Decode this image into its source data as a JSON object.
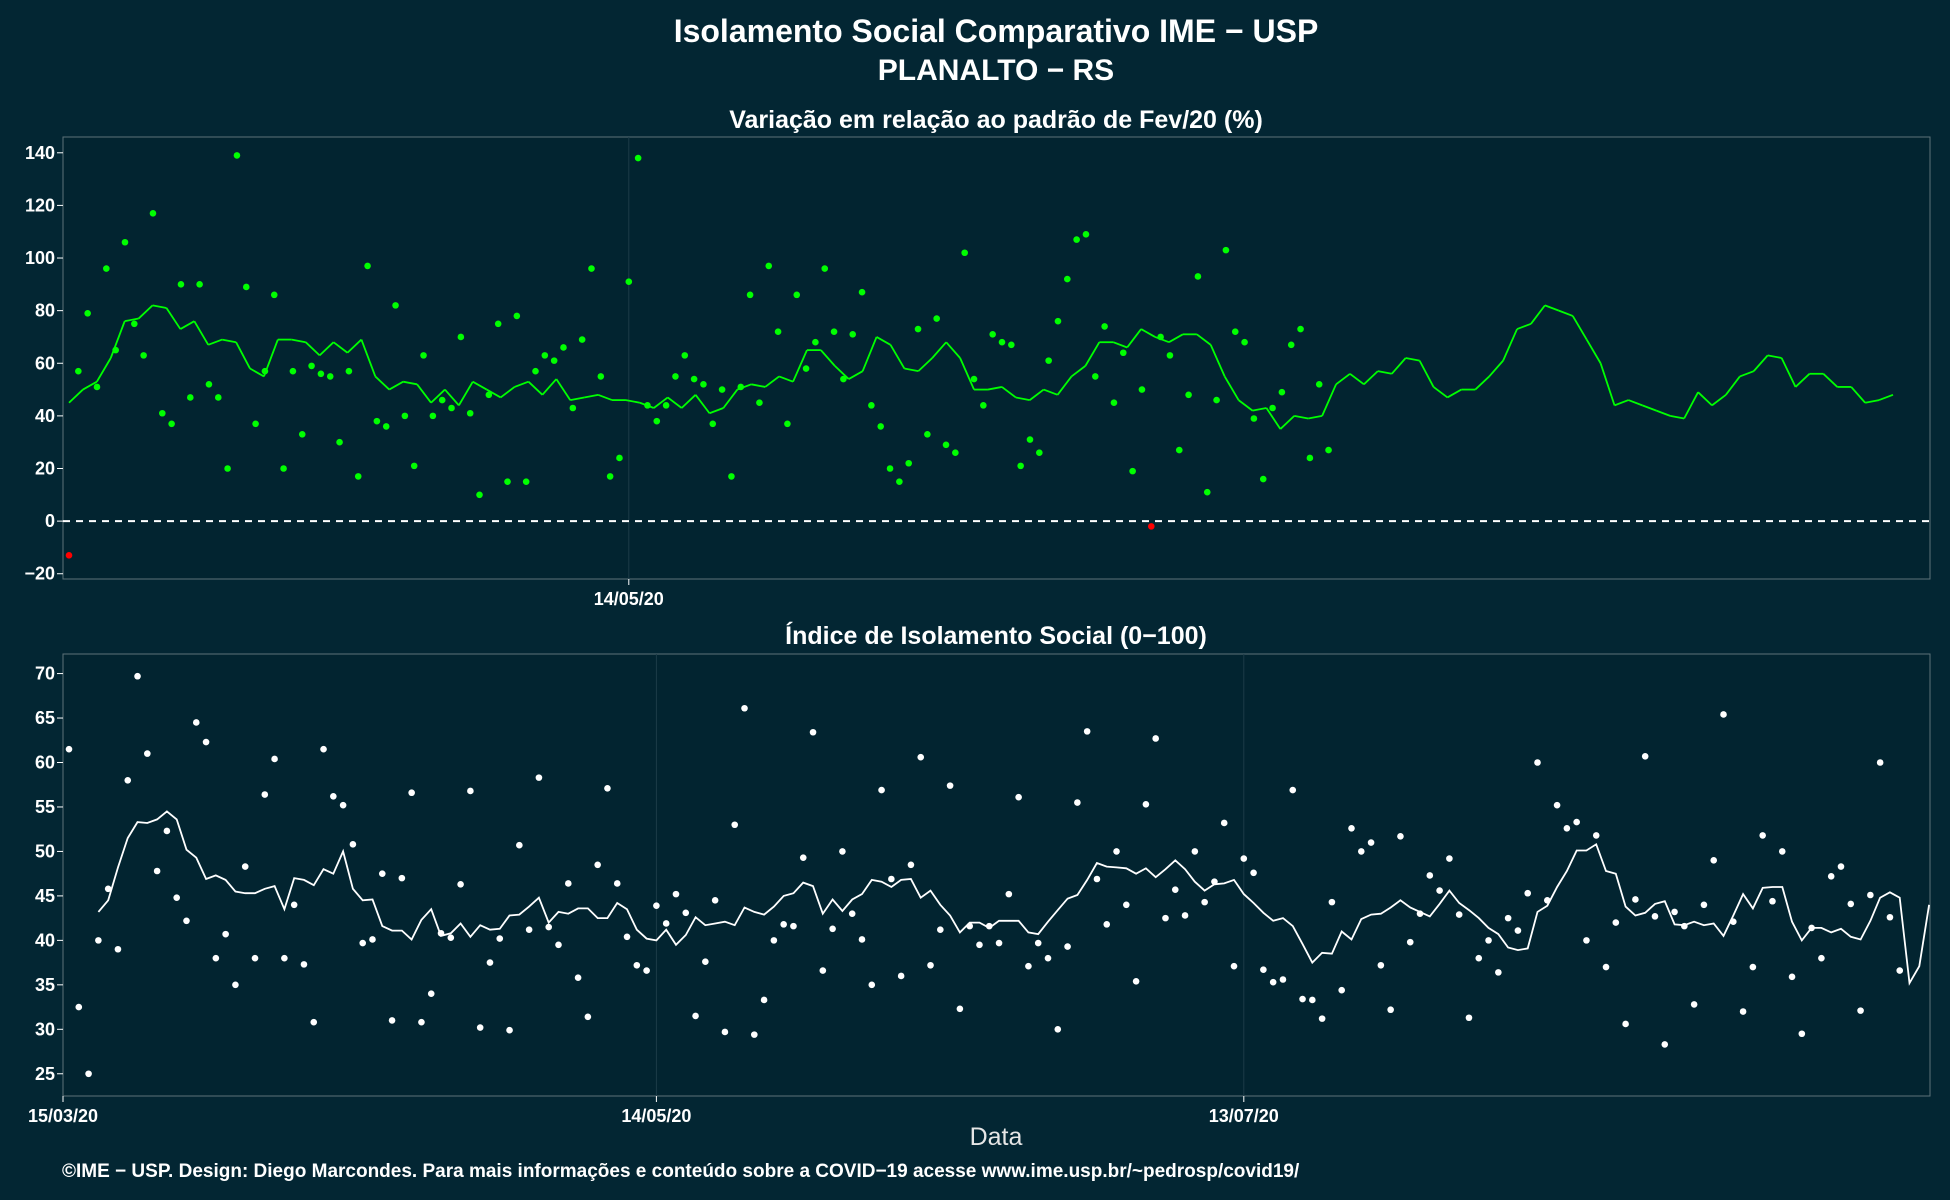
{
  "title_line1": "Isolamento Social Comparativo IME − USP",
  "title_line2": "PLANALTO − RS",
  "footer": "©IME − USP. Design: Diego Marcondes. Para mais informações e conteúdo sobre a COVID−19 acesse www.ime.usp.br/~pedrosp/covid19/",
  "colors": {
    "background": "#032633",
    "above_baseline": "#00ff00",
    "below_baseline": "#ff0000",
    "moving_average_light": "#ffffff",
    "index_points": "#ffffff"
  },
  "chart_data": [
    {
      "type": "scatter",
      "title": "Variação em relação ao padrão de Fev/20 (%)",
      "xlabel": "",
      "ylabel": "",
      "x_start": "15/03/20",
      "ylim": [
        -22,
        146
      ],
      "y_ticks": [
        "−20",
        "0",
        "20",
        "40",
        "60",
        "80",
        "100",
        "120",
        "140"
      ],
      "x_tick_labels": [
        "14/05/20"
      ],
      "x_tick_days": [
        60
      ],
      "reference_line": 0,
      "series": [
        {
          "kind": "points",
          "values": [
            -13,
            57,
            79,
            51,
            96,
            65,
            106,
            75,
            63,
            117,
            41,
            37,
            90,
            47,
            90,
            52,
            47,
            20,
            139,
            89,
            37,
            57,
            86,
            20,
            57,
            33,
            59,
            56,
            55,
            30,
            57,
            17,
            97,
            38,
            36,
            82,
            40,
            21,
            63,
            40,
            46,
            43,
            70,
            41,
            10,
            48,
            75,
            15,
            78,
            15,
            57,
            63,
            61,
            66,
            43,
            69,
            96,
            55,
            17,
            24,
            91,
            138,
            44,
            38,
            44,
            55,
            63,
            54,
            52,
            37,
            50,
            17,
            51,
            86,
            45,
            97,
            72,
            37,
            86,
            58,
            68,
            96,
            72,
            54,
            71,
            87,
            44,
            36,
            20,
            15,
            22,
            73,
            33,
            77,
            29,
            26,
            102,
            54,
            44,
            71,
            68,
            67,
            21,
            31,
            26,
            61,
            76,
            92,
            107,
            109,
            55,
            74,
            45,
            64,
            19,
            50,
            -2,
            70,
            63,
            27,
            48,
            93,
            11,
            46,
            103,
            72,
            68,
            39,
            16,
            43,
            49,
            67,
            73,
            24,
            52,
            27
          ]
        },
        {
          "kind": "moving_average",
          "values": [
            45,
            50,
            53,
            62,
            76,
            77,
            82,
            81,
            73,
            76,
            67,
            69,
            68,
            58,
            55,
            69,
            69,
            68,
            63,
            68,
            64,
            69,
            55,
            50,
            53,
            52,
            45,
            50,
            44,
            53,
            50,
            47,
            51,
            53,
            48,
            54,
            46,
            47,
            48,
            46,
            46,
            45,
            43,
            47,
            43,
            48,
            41,
            43,
            50,
            52,
            51,
            55,
            53,
            65,
            65,
            59,
            54,
            57,
            70,
            67,
            58,
            57,
            62,
            68,
            62,
            50,
            50,
            51,
            47,
            46,
            50,
            48,
            55,
            59,
            68,
            68,
            66,
            73,
            70,
            68,
            71,
            71,
            67,
            55,
            46,
            42,
            43,
            35,
            40,
            39,
            40,
            52,
            56,
            52,
            57,
            56,
            62,
            61,
            51,
            47,
            50,
            50,
            55,
            61,
            73,
            75,
            82,
            80,
            78,
            69,
            60,
            44,
            46,
            44,
            42,
            40,
            39,
            49,
            44,
            48,
            55,
            57,
            63,
            62,
            51,
            56,
            56,
            51,
            51,
            45,
            46,
            48
          ]
        }
      ]
    },
    {
      "type": "scatter",
      "title": "Índice de Isolamento Social (0−100)",
      "xlabel": "Data",
      "ylabel": "",
      "x_start": "15/03/20",
      "ylim": [
        22.5,
        72.2
      ],
      "y_ticks": [
        "25",
        "30",
        "35",
        "40",
        "45",
        "50",
        "55",
        "60",
        "65",
        "70"
      ],
      "x_tick_labels": [
        "15/03/20",
        "14/05/20",
        "13/07/20"
      ],
      "x_tick_days": [
        0,
        60,
        120
      ],
      "series": [
        {
          "kind": "points",
          "values": [
            61.5,
            32.5,
            25,
            40,
            45.8,
            39,
            58,
            69.7,
            61,
            47.8,
            52.3,
            44.8,
            42.2,
            64.5,
            62.3,
            38,
            40.7,
            35,
            48.3,
            38,
            56.4,
            60.4,
            38,
            44,
            37.3,
            30.8,
            61.5,
            56.2,
            55.2,
            50.8,
            39.7,
            40.1,
            47.5,
            31,
            47,
            56.6,
            30.8,
            34,
            40.8,
            40.3,
            46.3,
            56.8,
            30.2,
            37.5,
            40.2,
            29.9,
            50.7,
            41.2,
            58.3,
            41.5,
            39.5,
            46.4,
            35.8,
            31.4,
            48.5,
            57.1,
            46.4,
            40.4,
            37.2,
            36.6,
            43.9,
            41.9,
            45.2,
            43.1,
            31.5,
            37.6,
            44.5,
            29.7,
            53,
            66.1,
            29.4,
            33.3,
            40,
            41.8,
            41.6,
            49.3,
            63.4,
            36.6,
            41.3,
            50,
            43,
            40.1,
            35,
            56.9,
            46.9,
            36,
            48.5,
            60.6,
            37.2,
            41.2,
            57.4,
            32.3,
            41.6,
            39.5,
            41.6,
            39.7,
            45.2,
            56.1,
            37.1,
            39.7,
            38,
            30,
            39.3,
            55.5,
            63.5,
            46.9,
            41.8,
            50,
            44,
            35.4,
            55.3,
            62.7,
            42.5,
            45.7,
            42.8,
            50,
            44.3,
            46.6,
            53.2,
            37.1,
            49.2,
            47.6,
            36.7,
            35.3,
            35.6,
            56.9,
            33.4,
            33.3,
            31.2,
            44.3,
            34.4,
            52.6,
            50,
            51,
            37.2,
            32.2,
            51.7,
            39.8,
            43,
            47.3,
            45.6,
            49.2,
            42.9,
            31.3,
            38,
            40,
            36.4,
            42.5,
            41.1,
            45.3,
            60,
            44.5,
            55.2,
            52.6,
            53.3,
            40,
            51.8,
            37,
            42,
            30.6,
            44.6,
            60.7,
            42.7,
            28.3,
            43.2,
            41.6,
            32.8,
            44,
            49,
            65.4,
            42.1,
            32,
            37,
            51.8,
            44.4,
            50,
            35.9,
            29.5,
            41.4,
            38,
            47.2,
            48.3,
            44.1,
            32.1,
            45.1,
            60,
            42.6,
            36.6
          ]
        },
        {
          "kind": "moving_average",
          "values": [
            43.2,
            44.5,
            48.2,
            51.5,
            53.3,
            53.2,
            53.6,
            54.5,
            53.6,
            50.2,
            49.3,
            46.9,
            47.3,
            46.8,
            45.5,
            45.3,
            45.3,
            45.8,
            46.1,
            43.5,
            47,
            46.8,
            46.2,
            48,
            47.5,
            50,
            45.8,
            44.5,
            44.6,
            41.6,
            41.1,
            41.1,
            40.1,
            42.3,
            43.5,
            40.5,
            40.8,
            41.9,
            40.4,
            41.7,
            41.2,
            41.3,
            42.8,
            42.9,
            43.8,
            44.8,
            42,
            43.2,
            43,
            43.6,
            43.6,
            42.5,
            42.5,
            44.2,
            43.5,
            41.2,
            40.2,
            40,
            41.2,
            39.5,
            40.6,
            42.6,
            41.7,
            41.9,
            42.1,
            41.7,
            43.7,
            43.2,
            42.9,
            43.8,
            45,
            45.3,
            46.5,
            46.1,
            43,
            44.6,
            43.3,
            44.6,
            45.2,
            46.8,
            46.6,
            46,
            46.8,
            46.9,
            44.8,
            45.6,
            44,
            42.8,
            40.9,
            42,
            42,
            41.4,
            42.2,
            42.2,
            42.2,
            40.9,
            40.7,
            42.1,
            43.4,
            44.7,
            45.1,
            46.8,
            48.7,
            48.3,
            48.2,
            48.1,
            47.5,
            48.1,
            47.1,
            48,
            49,
            48,
            46.6,
            45.6,
            46.3,
            46.4,
            46.8,
            45.2,
            44.2,
            43.1,
            42.2,
            42.5,
            41.6,
            39.6,
            37.5,
            38.6,
            38.5,
            41,
            40.1,
            42.4,
            42.9,
            43,
            43.7,
            44.5,
            43.7,
            43.2,
            42.7,
            44.1,
            45.6,
            44.2,
            43.4,
            42.5,
            41.4,
            40.7,
            39.2,
            38.9,
            39.1,
            43.2,
            43.9,
            46,
            47.8,
            50.1,
            50.1,
            50.8,
            47.8,
            47.5,
            43.8,
            42.8,
            43.1,
            44.1,
            44.4,
            41.8,
            41.7,
            42.1,
            41.7,
            41.9,
            40.5,
            42.8,
            45.2,
            43.6,
            45.9,
            46,
            46,
            42.1,
            40,
            41.4,
            41.4,
            40.9,
            41.3,
            40.4,
            40.1,
            42.2,
            44.8,
            45.4,
            44.8,
            35.2,
            37.1,
            44
          ]
        }
      ]
    }
  ]
}
